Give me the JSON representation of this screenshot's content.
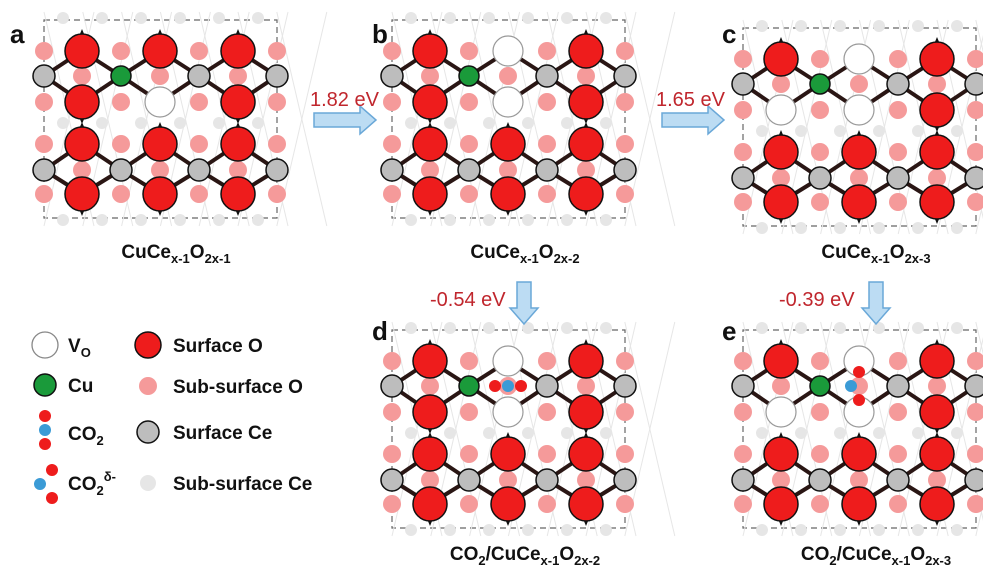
{
  "panels": [
    {
      "id": "a",
      "caption_main": "CuCe",
      "caption_sub1": "x-1",
      "caption_mid": "O",
      "caption_sub2": "2x-1",
      "caption_pre": "",
      "caption_pre_sub": "",
      "caption_slash": ""
    },
    {
      "id": "b",
      "caption_main": "CuCe",
      "caption_sub1": "x-1",
      "caption_mid": "O",
      "caption_sub2": "2x-2",
      "caption_pre": "",
      "caption_pre_sub": "",
      "caption_slash": ""
    },
    {
      "id": "c",
      "caption_main": "CuCe",
      "caption_sub1": "x-1",
      "caption_mid": "O",
      "caption_sub2": "2x-3",
      "caption_pre": "",
      "caption_pre_sub": "",
      "caption_slash": ""
    },
    {
      "id": "d",
      "caption_main": "CuCe",
      "caption_sub1": "x-1",
      "caption_mid": "O",
      "caption_sub2": "2x-2",
      "caption_pre": "CO",
      "caption_pre_sub": "2",
      "caption_slash": "/"
    },
    {
      "id": "e",
      "caption_main": "CuCe",
      "caption_sub1": "x-1",
      "caption_mid": "O",
      "caption_sub2": "2x-3",
      "caption_pre": "CO",
      "caption_pre_sub": "2",
      "caption_slash": "/"
    }
  ],
  "arrows": [
    {
      "from": "a",
      "to": "b",
      "label": "1.82 eV"
    },
    {
      "from": "b",
      "to": "c",
      "label": "1.65 eV"
    },
    {
      "from": "b",
      "to": "d",
      "label": "-0.54 eV"
    },
    {
      "from": "c",
      "to": "e",
      "label": "-0.39 eV"
    }
  ],
  "legend": {
    "vo": {
      "main": "V",
      "sub": "O"
    },
    "cu": "Cu",
    "co2": {
      "main": "CO",
      "sub": "2"
    },
    "co2d": {
      "main": "CO",
      "sub": "2",
      "sup": "δ-"
    },
    "surface_o": "Surface O",
    "subsurface_o": "Sub-surface O",
    "surface_ce": "Surface Ce",
    "subsurface_ce": "Sub-surface Ce"
  },
  "colors": {
    "surface_o": "#ee1c1c",
    "subsurface_o": "#f59a9a",
    "surface_ce": "#bdbdbd",
    "subsurface_ce": "#e6e6e6",
    "cu": "#1a9a3a",
    "carbon": "#3b9bd6",
    "bond": "#2a1614",
    "arrow_fill": "#bcdcf3",
    "arrow_stroke": "#6aa8d8",
    "energy_text": "#c0262d"
  }
}
